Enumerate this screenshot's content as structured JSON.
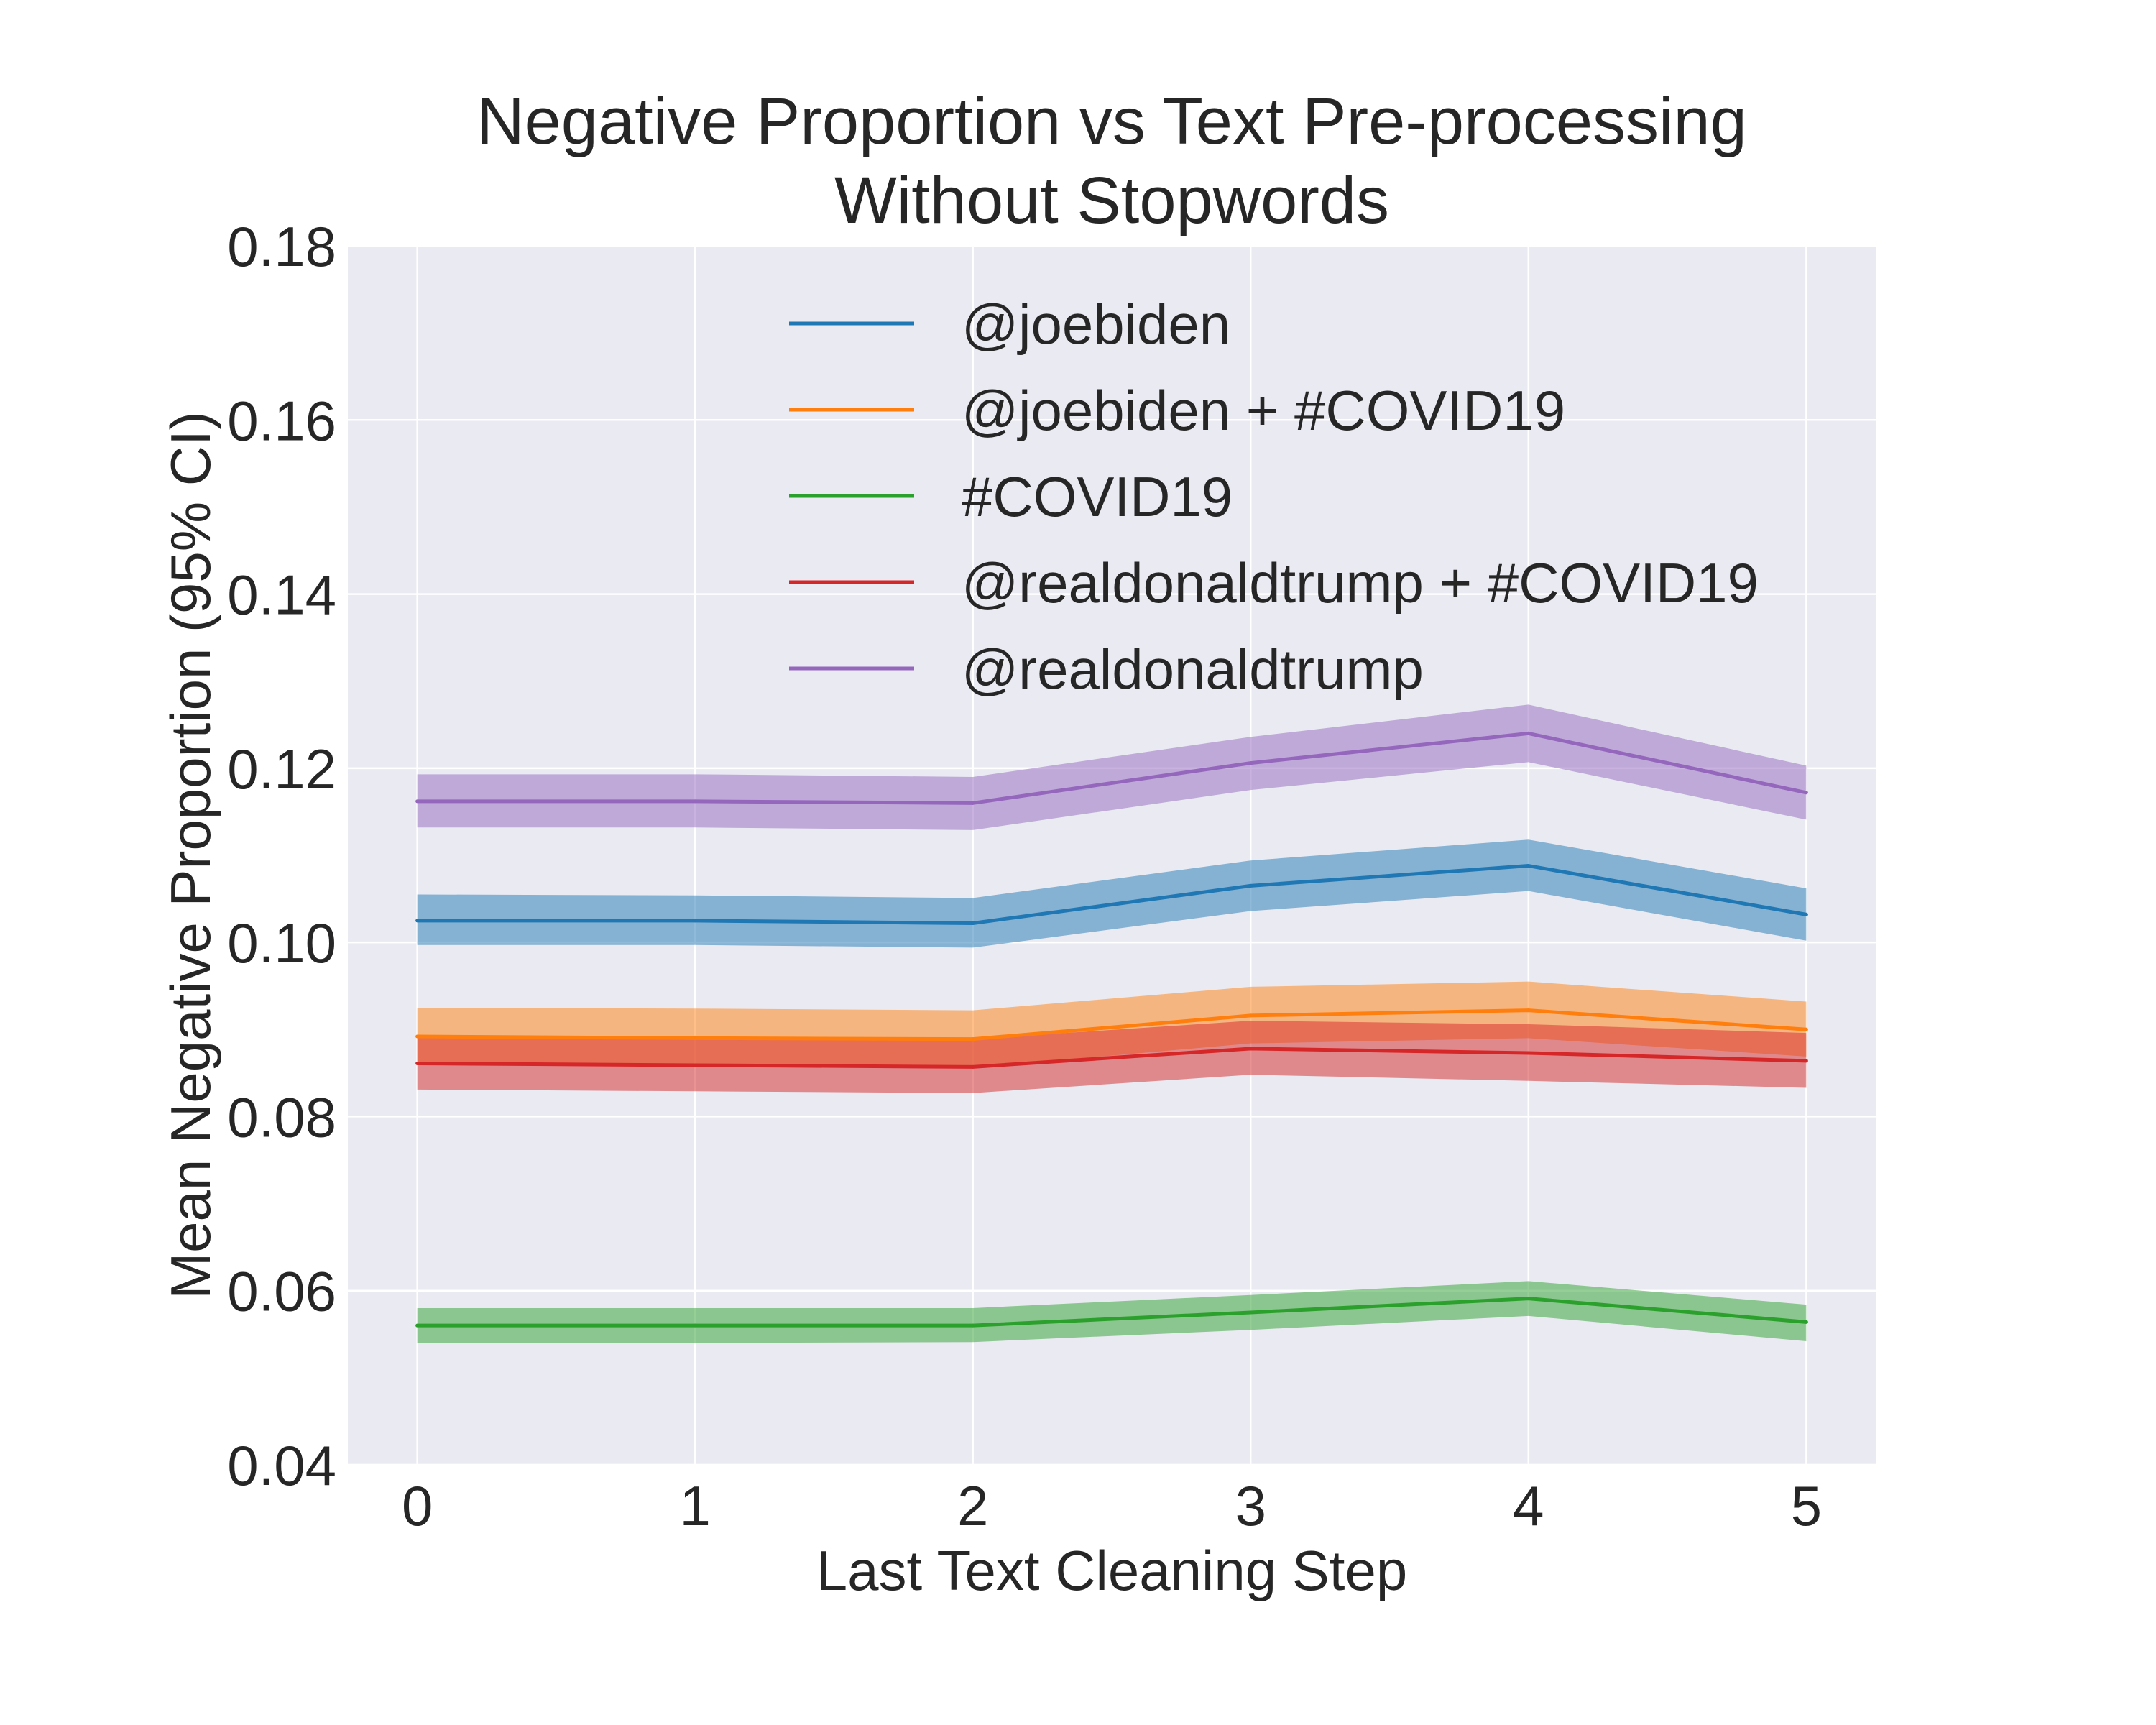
{
  "chart_data": {
    "type": "line",
    "title": "Negative Proportion vs Text Pre-processing",
    "subtitle": "Without Stopwords",
    "xlabel": "Last Text Cleaning Step",
    "ylabel": "Mean Negative Proportion (95% CI)",
    "x": [
      0,
      1,
      2,
      3,
      4,
      5
    ],
    "xlim": [
      -0.25,
      5.25
    ],
    "ylim": [
      0.04,
      0.18
    ],
    "xticks": [
      "0",
      "1",
      "2",
      "3",
      "4",
      "5"
    ],
    "yticks": [
      "0.04",
      "0.06",
      "0.08",
      "0.10",
      "0.12",
      "0.14",
      "0.16",
      "0.18"
    ],
    "grid": true,
    "legend_position": "top-center",
    "series": [
      {
        "name": "@joebiden",
        "color": "#1f77b4",
        "values": [
          0.1025,
          0.1025,
          0.1022,
          0.1065,
          0.1088,
          0.1032
        ],
        "ci_lower": [
          0.0997,
          0.0997,
          0.0994,
          0.1036,
          0.1059,
          0.1002
        ],
        "ci_upper": [
          0.1055,
          0.1054,
          0.1051,
          0.1094,
          0.1118,
          0.1062
        ]
      },
      {
        "name": "@joebiden + #COVID19",
        "color": "#ff7f0e",
        "values": [
          0.0892,
          0.089,
          0.0889,
          0.0916,
          0.0922,
          0.09
        ],
        "ci_lower": [
          0.086,
          0.0858,
          0.0856,
          0.0884,
          0.089,
          0.0869
        ],
        "ci_upper": [
          0.0925,
          0.0924,
          0.0922,
          0.0949,
          0.0955,
          0.0932
        ]
      },
      {
        "name": "#COVID19",
        "color": "#2ca02c",
        "values": [
          0.056,
          0.056,
          0.056,
          0.0575,
          0.0591,
          0.0564
        ],
        "ci_lower": [
          0.054,
          0.054,
          0.0541,
          0.0555,
          0.0571,
          0.0542
        ],
        "ci_upper": [
          0.058,
          0.058,
          0.058,
          0.0595,
          0.0611,
          0.0584
        ]
      },
      {
        "name": "@realdonaldtrump + #COVID19",
        "color": "#d62728",
        "values": [
          0.0861,
          0.0859,
          0.0857,
          0.0878,
          0.0873,
          0.0864
        ],
        "ci_lower": [
          0.0831,
          0.0829,
          0.0827,
          0.0848,
          0.0841,
          0.0833
        ],
        "ci_upper": [
          0.0893,
          0.0891,
          0.0889,
          0.091,
          0.0906,
          0.0896
        ]
      },
      {
        "name": "@realdonaldtrump",
        "color": "#9467bd",
        "values": [
          0.1162,
          0.1162,
          0.116,
          0.1206,
          0.124,
          0.1172
        ],
        "ci_lower": [
          0.1132,
          0.1132,
          0.1129,
          0.1175,
          0.1207,
          0.1141
        ],
        "ci_upper": [
          0.1193,
          0.1193,
          0.119,
          0.1236,
          0.1273,
          0.1203
        ]
      }
    ],
    "colors": {
      "plot_background": "#eaeaf2",
      "grid": "#ffffff",
      "text": "#262626"
    }
  }
}
